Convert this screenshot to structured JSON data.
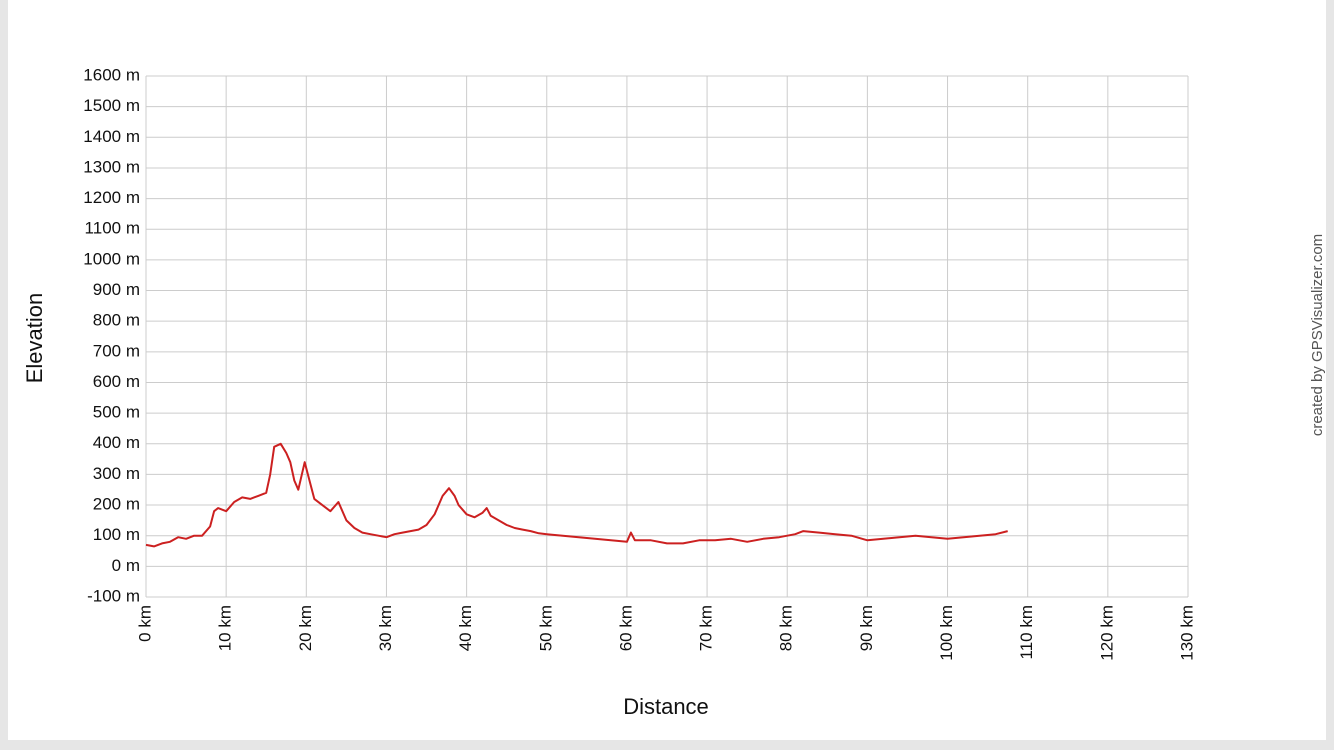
{
  "chart_data": {
    "type": "line",
    "y_label": "Elevation",
    "x_label": "Distance",
    "credit": "created by GPSVisualizer.com",
    "color": "#cc2020",
    "grid": true,
    "xlim": [
      0,
      130
    ],
    "ylim": [
      -100,
      1600
    ],
    "xticks": [
      {
        "value": 0,
        "label": "0 km"
      },
      {
        "value": 10,
        "label": "10 km"
      },
      {
        "value": 20,
        "label": "20 km"
      },
      {
        "value": 30,
        "label": "30 km"
      },
      {
        "value": 40,
        "label": "40 km"
      },
      {
        "value": 50,
        "label": "50 km"
      },
      {
        "value": 60,
        "label": "60 km"
      },
      {
        "value": 70,
        "label": "70 km"
      },
      {
        "value": 80,
        "label": "80 km"
      },
      {
        "value": 90,
        "label": "90 km"
      },
      {
        "value": 100,
        "label": "100 km"
      },
      {
        "value": 110,
        "label": "110 km"
      },
      {
        "value": 120,
        "label": "120 km"
      },
      {
        "value": 130,
        "label": "130 km"
      }
    ],
    "yticks": [
      {
        "value": -100,
        "label": "-100 m"
      },
      {
        "value": 0,
        "label": "0 m"
      },
      {
        "value": 100,
        "label": "100 m"
      },
      {
        "value": 200,
        "label": "200 m"
      },
      {
        "value": 300,
        "label": "300 m"
      },
      {
        "value": 400,
        "label": "400 m"
      },
      {
        "value": 500,
        "label": "500 m"
      },
      {
        "value": 600,
        "label": "600 m"
      },
      {
        "value": 700,
        "label": "700 m"
      },
      {
        "value": 800,
        "label": "800 m"
      },
      {
        "value": 900,
        "label": "900 m"
      },
      {
        "value": 1000,
        "label": "1000 m"
      },
      {
        "value": 1100,
        "label": "1100 m"
      },
      {
        "value": 1200,
        "label": "1200 m"
      },
      {
        "value": 1300,
        "label": "1300 m"
      },
      {
        "value": 1400,
        "label": "1400 m"
      },
      {
        "value": 1500,
        "label": "1500 m"
      },
      {
        "value": 1600,
        "label": "1600 m"
      }
    ],
    "x": [
      0,
      1,
      2,
      3,
      4,
      5,
      6,
      7,
      8,
      8.5,
      9,
      10,
      11,
      12,
      13,
      14,
      15,
      15.5,
      16,
      16.8,
      17.5,
      18,
      18.5,
      19,
      19.8,
      20.5,
      21,
      22,
      23,
      24,
      25,
      26,
      27,
      28,
      29,
      30,
      31,
      32,
      33,
      34,
      35,
      36,
      37,
      37.8,
      38.5,
      39,
      40,
      41,
      42,
      42.5,
      43,
      44,
      45,
      46,
      47,
      48,
      49,
      50,
      52,
      54,
      56,
      58,
      60,
      60.5,
      61,
      63,
      65,
      67,
      69,
      71,
      73,
      75,
      77,
      79,
      81,
      82,
      84,
      86,
      88,
      90,
      92,
      94,
      96,
      98,
      100,
      102,
      104,
      106,
      107.5
    ],
    "values": [
      70,
      65,
      75,
      80,
      95,
      90,
      100,
      100,
      130,
      180,
      190,
      180,
      210,
      225,
      220,
      230,
      240,
      300,
      390,
      400,
      370,
      340,
      280,
      250,
      340,
      270,
      220,
      200,
      180,
      210,
      150,
      125,
      110,
      105,
      100,
      95,
      105,
      110,
      115,
      120,
      135,
      170,
      230,
      255,
      230,
      200,
      170,
      160,
      175,
      190,
      165,
      150,
      135,
      125,
      120,
      115,
      108,
      105,
      100,
      95,
      90,
      85,
      80,
      110,
      85,
      85,
      75,
      75,
      85,
      85,
      90,
      80,
      90,
      95,
      105,
      115,
      110,
      105,
      100,
      85,
      90,
      95,
      100,
      95,
      90,
      95,
      100,
      105,
      115
    ]
  }
}
